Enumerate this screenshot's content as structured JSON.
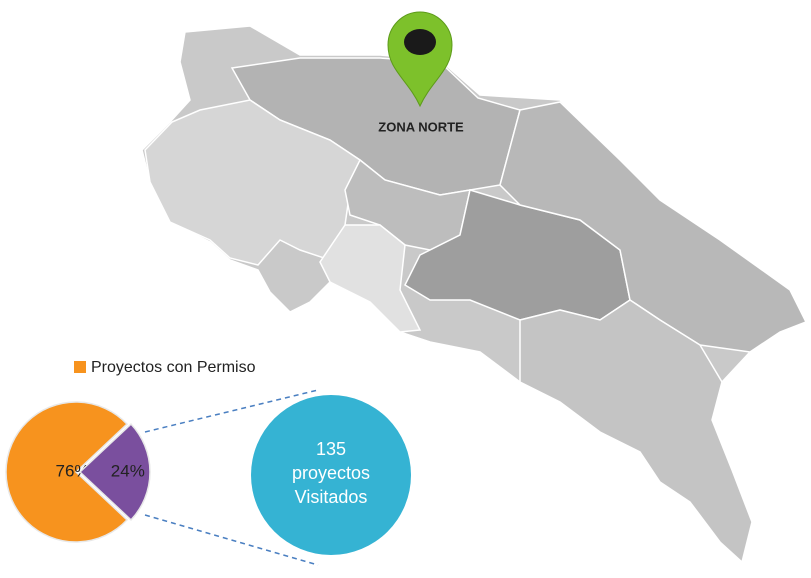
{
  "chart_data": {
    "type": "pie",
    "map_label": "ZONA NORTE",
    "categories": [
      "Proyectos con Permiso",
      null
    ],
    "values": [
      76,
      24
    ],
    "value_labels": [
      "76%",
      "24%"
    ],
    "colors": [
      "#f7931e",
      "#7a4f9e"
    ],
    "callout": [
      "135",
      "proyectos",
      "Visitados"
    ],
    "callout_color": "#35b3d3"
  }
}
